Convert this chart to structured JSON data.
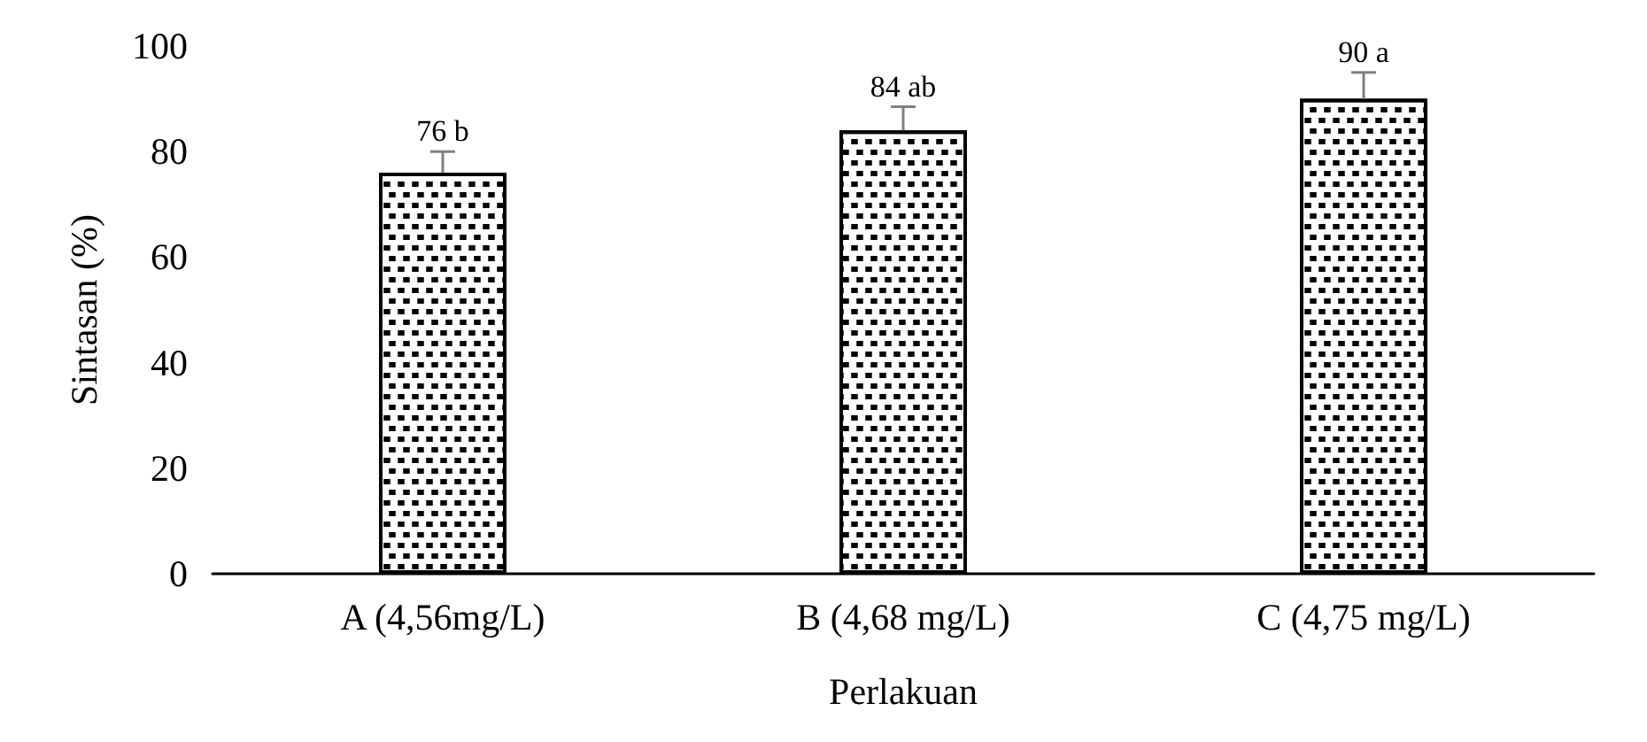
{
  "chart_data": {
    "type": "bar",
    "xlabel": "Perlakuan",
    "ylabel": "Sintasan (%)",
    "categories": [
      "A (4,56mg/L)",
      "B (4,68 mg/L)",
      "C (4,75 mg/L)"
    ],
    "values": [
      76,
      84,
      90
    ],
    "errors": [
      [
        76,
        80
      ],
      [
        84,
        88.5
      ],
      [
        90,
        95
      ]
    ],
    "value_labels": [
      "76 b",
      "84 ab",
      "90 a"
    ],
    "color": "#000000",
    "ylim": [
      0,
      100
    ],
    "yticks": [
      0,
      20,
      40,
      60,
      80,
      100
    ],
    "grid": false
  }
}
